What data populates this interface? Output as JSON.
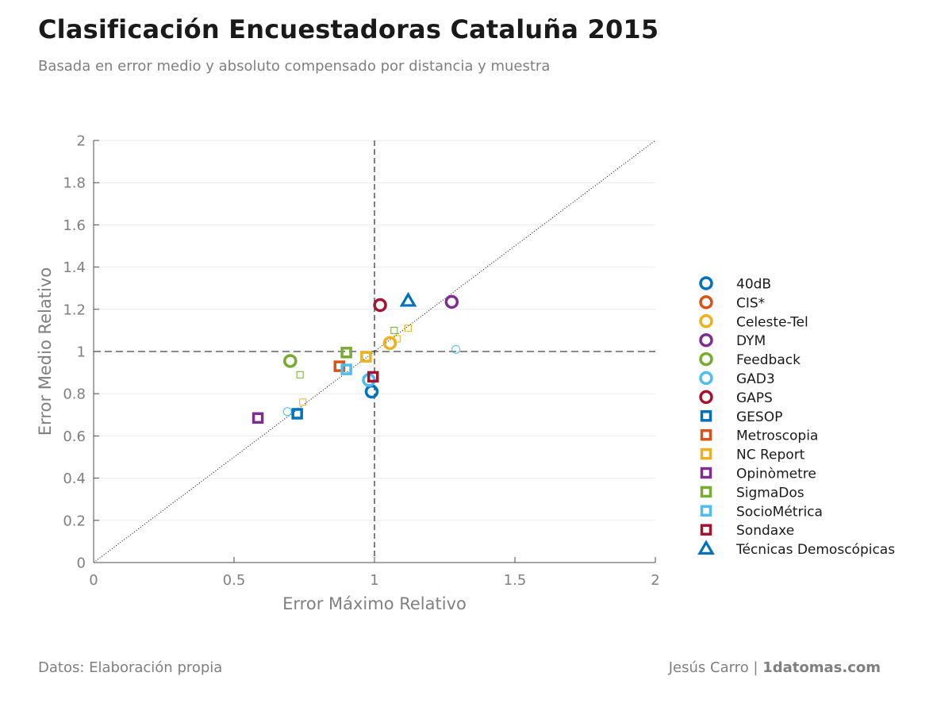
{
  "header": {
    "title": "Clasificación Encuestadoras Cataluña 2015",
    "subtitle": "Basada en error medio y absoluto compensado por distancia y muestra"
  },
  "footer": {
    "source": "Datos: Elaboración propia",
    "author": "Jesús Carro",
    "separator": " | ",
    "site": "1datomas.com"
  },
  "chart_data": {
    "type": "scatter",
    "xlabel": "Error Máximo Relativo",
    "ylabel": "Error Medio Relativo",
    "xlim": [
      0,
      2
    ],
    "ylim": [
      0,
      2
    ],
    "xticks": [
      0,
      0.5,
      1,
      1.5,
      2
    ],
    "xtick_labels": [
      "0",
      "0.5",
      "1",
      "1.5",
      "2"
    ],
    "yticks": [
      0,
      0.2,
      0.4,
      0.6,
      0.8,
      1,
      1.2,
      1.4,
      1.6,
      1.8,
      2
    ],
    "ytick_labels": [
      "0",
      "0.2",
      "0.4",
      "0.6",
      "0.8",
      "1",
      "1.2",
      "1.4",
      "1.6",
      "1.8",
      "2"
    ],
    "grid": true,
    "legend_position": "right",
    "reference_lines": [
      {
        "type": "vertical",
        "value": 1,
        "style": "dashed"
      },
      {
        "type": "horizontal",
        "value": 1,
        "style": "dashed"
      },
      {
        "type": "diagonal",
        "style": "dotted"
      }
    ],
    "series": [
      {
        "name": "40dB",
        "marker": "circle",
        "color": "#0072bd",
        "points": [
          {
            "x": 0.99,
            "y": 0.81,
            "size": "large"
          }
        ]
      },
      {
        "name": "CIS*",
        "marker": "circle",
        "color": "#d95319",
        "points": []
      },
      {
        "name": "Celeste-Tel",
        "marker": "circle",
        "color": "#edb120",
        "points": [
          {
            "x": 1.055,
            "y": 1.04,
            "size": "large"
          }
        ]
      },
      {
        "name": "DYM",
        "marker": "circle",
        "color": "#7e2f8e",
        "points": [
          {
            "x": 1.275,
            "y": 1.235,
            "size": "large"
          }
        ]
      },
      {
        "name": "Feedback",
        "marker": "circle",
        "color": "#77ac30",
        "points": [
          {
            "x": 0.7,
            "y": 0.955,
            "size": "large"
          }
        ]
      },
      {
        "name": "GAD3",
        "marker": "circle",
        "color": "#4dbeee",
        "points": [
          {
            "x": 0.98,
            "y": 0.865,
            "size": "large"
          },
          {
            "x": 0.69,
            "y": 0.715,
            "size": "small"
          },
          {
            "x": 1.29,
            "y": 1.01,
            "size": "small"
          }
        ]
      },
      {
        "name": "GAPS",
        "marker": "circle",
        "color": "#a2142f",
        "points": [
          {
            "x": 1.02,
            "y": 1.22,
            "size": "large"
          }
        ]
      },
      {
        "name": "GESOP",
        "marker": "square",
        "color": "#0072bd",
        "points": [
          {
            "x": 0.725,
            "y": 0.705,
            "size": "large"
          }
        ]
      },
      {
        "name": "Metroscopia",
        "marker": "square",
        "color": "#d95319",
        "points": [
          {
            "x": 0.875,
            "y": 0.93,
            "size": "large"
          }
        ]
      },
      {
        "name": "NC Report",
        "marker": "square",
        "color": "#edb120",
        "points": [
          {
            "x": 0.97,
            "y": 0.975,
            "size": "large"
          },
          {
            "x": 0.745,
            "y": 0.76,
            "size": "small"
          },
          {
            "x": 1.08,
            "y": 1.06,
            "size": "small"
          },
          {
            "x": 1.12,
            "y": 1.11,
            "size": "small"
          }
        ]
      },
      {
        "name": "Opinòmetre",
        "marker": "square",
        "color": "#7e2f8e",
        "points": [
          {
            "x": 0.585,
            "y": 0.685,
            "size": "large"
          }
        ]
      },
      {
        "name": "SigmaDos",
        "marker": "square",
        "color": "#77ac30",
        "points": [
          {
            "x": 0.9,
            "y": 0.995,
            "size": "large"
          },
          {
            "x": 0.735,
            "y": 0.89,
            "size": "small"
          },
          {
            "x": 1.07,
            "y": 1.1,
            "size": "small"
          }
        ]
      },
      {
        "name": "SocioMétrica",
        "marker": "square",
        "color": "#4dbeee",
        "points": [
          {
            "x": 0.9,
            "y": 0.915,
            "size": "large"
          }
        ]
      },
      {
        "name": "Sondaxe",
        "marker": "square",
        "color": "#a2142f",
        "points": [
          {
            "x": 0.995,
            "y": 0.88,
            "size": "large"
          }
        ]
      },
      {
        "name": "Técnicas Demoscópicas",
        "marker": "triangle",
        "color": "#0072bd",
        "points": [
          {
            "x": 1.12,
            "y": 1.24,
            "size": "large"
          }
        ]
      }
    ]
  }
}
